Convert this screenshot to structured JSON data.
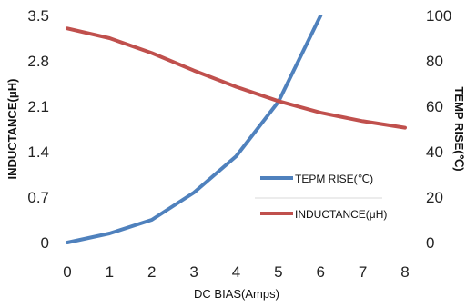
{
  "chart_data": {
    "type": "line",
    "title": "",
    "xlabel": "DC BIAS(Amps)",
    "ylabel_left": "INDUCTANCE(μH)",
    "ylabel_right": "TEMP RISE(℃)",
    "x": [
      0,
      1,
      2,
      3,
      4,
      5,
      6,
      7,
      8
    ],
    "xlim": [
      0,
      8
    ],
    "ylim_left": [
      0,
      3.5
    ],
    "ylim_right": [
      0,
      100
    ],
    "x_ticks": [
      "0",
      "1",
      "2",
      "3",
      "4",
      "5",
      "6",
      "7",
      "8"
    ],
    "y_left_ticks": [
      "0",
      "0.7",
      "1.4",
      "2.1",
      "2.8",
      "3.5"
    ],
    "y_right_ticks": [
      "0",
      "20",
      "40",
      "60",
      "80",
      "100"
    ],
    "grid": false,
    "legend_position": "center-right",
    "series": [
      {
        "name": "TEPM RISE(℃)",
        "axis": "right",
        "color": "#4f81bd",
        "x": [
          0,
          1,
          2,
          3,
          4,
          5,
          6
        ],
        "values": [
          0,
          4,
          10,
          22,
          38,
          62,
          100
        ]
      },
      {
        "name": "INDUCTANCE(μH)",
        "axis": "left",
        "color": "#c0504d",
        "x": [
          0,
          1,
          2,
          3,
          4,
          5,
          6,
          7,
          8
        ],
        "values": [
          3.3,
          3.15,
          2.92,
          2.65,
          2.4,
          2.18,
          2.0,
          1.87,
          1.77
        ]
      }
    ]
  }
}
